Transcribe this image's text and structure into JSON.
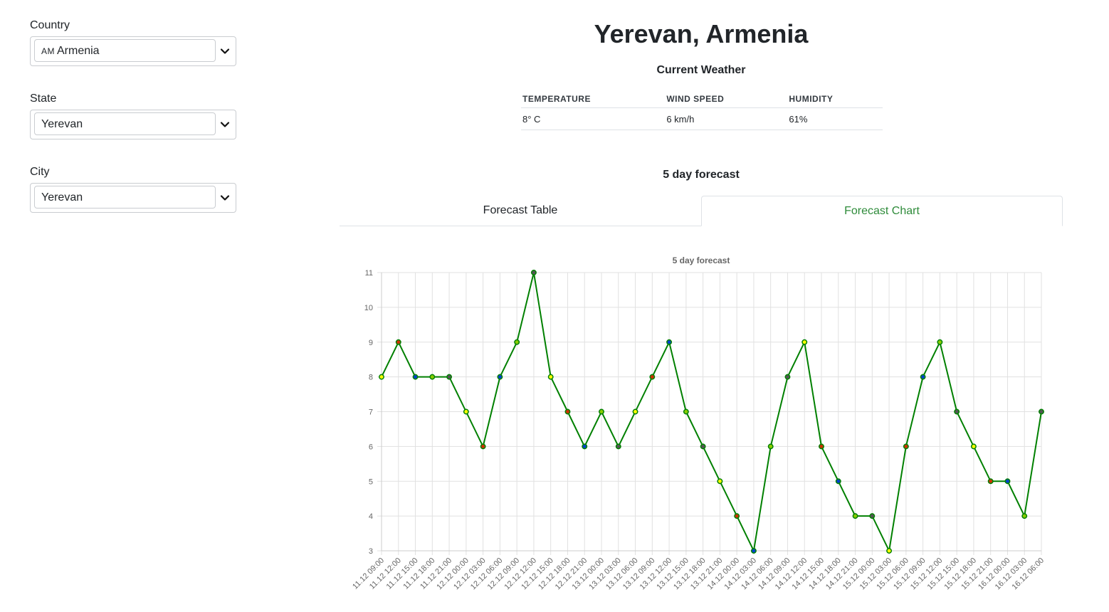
{
  "sidebar": {
    "country": {
      "label": "Country",
      "flag": "AM",
      "value": "Armenia"
    },
    "state": {
      "label": "State",
      "value": "Yerevan"
    },
    "city": {
      "label": "City",
      "value": "Yerevan"
    }
  },
  "header": {
    "title": "Yerevan, Armenia"
  },
  "current_weather": {
    "title": "Current Weather",
    "columns": [
      "TEMPERATURE",
      "WIND SPEED",
      "HUMIDITY"
    ],
    "values": [
      "8° C",
      "6 km/h",
      "61%"
    ]
  },
  "forecast": {
    "title": "5 day forecast",
    "tabs": [
      "Forecast Table",
      "Forecast Chart"
    ],
    "active_tab": "Forecast Chart"
  },
  "colors": {
    "accent": "#2e8b3a",
    "line": "#008000"
  },
  "chart_data": {
    "type": "line",
    "title": "5 day forecast",
    "x": [
      "11.12 09:00",
      "11.12 12:00",
      "11.12 15:00",
      "11.12 18:00",
      "11.12 21:00",
      "12.12 00:00",
      "12.12 03:00",
      "12.12 06:00",
      "12.12 09:00",
      "12.12 12:00",
      "12.12 15:00",
      "12.12 18:00",
      "12.12 21:00",
      "13.12 00:00",
      "13.12 03:00",
      "13.12 06:00",
      "13.12 09:00",
      "13.12 12:00",
      "13.12 15:00",
      "13.12 18:00",
      "13.12 21:00",
      "14.12 00:00",
      "14.12 03:00",
      "14.12 06:00",
      "14.12 09:00",
      "14.12 12:00",
      "14.12 15:00",
      "14.12 18:00",
      "14.12 21:00",
      "15.12 00:00",
      "15.12 03:00",
      "15.12 06:00",
      "15.12 09:00",
      "15.12 12:00",
      "15.12 15:00",
      "15.12 18:00",
      "15.12 21:00",
      "16.12 00:00",
      "16.12 03:00",
      "16.12 06:00"
    ],
    "values": [
      8,
      9,
      8,
      8,
      8,
      7,
      6,
      8,
      9,
      11,
      8,
      7,
      6,
      7,
      6,
      7,
      8,
      9,
      7,
      6,
      5,
      4,
      3,
      6,
      8,
      9,
      6,
      5,
      4,
      4,
      3,
      6,
      8,
      9,
      7,
      6,
      5,
      5,
      4,
      7
    ],
    "point_colors": [
      "#ffff00",
      "#cc3300",
      "#0044cc",
      "#88cc00",
      "#555555",
      "#ffff00",
      "#cc3300",
      "#0044cc",
      "#88cc00",
      "#555555",
      "#ffff00",
      "#cc3300",
      "#0044cc",
      "#88cc00",
      "#555555",
      "#ffff00",
      "#cc3300",
      "#0044cc",
      "#88cc00",
      "#555555",
      "#ffff00",
      "#cc3300",
      "#0044cc",
      "#88cc00",
      "#555555",
      "#ffff00",
      "#cc3300",
      "#0044cc",
      "#88cc00",
      "#555555",
      "#ffff00",
      "#cc3300",
      "#0044cc",
      "#88cc00",
      "#555555",
      "#ffff00",
      "#cc3300",
      "#0044cc",
      "#88cc00",
      "#555555"
    ],
    "yticks": [
      3,
      4,
      5,
      6,
      7,
      8,
      9,
      10,
      11
    ],
    "ylim": [
      3,
      11
    ],
    "grid": true
  }
}
